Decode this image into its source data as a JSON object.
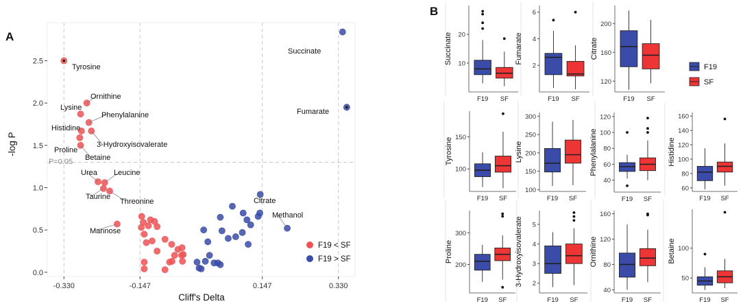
{
  "colors": {
    "F19": "#3a4ba8",
    "SF": "#ee3535",
    "SF_dot": "#ec5456",
    "grid_dash": "#c9c9c9",
    "panel_rule": "#e6e6e6"
  },
  "panelA": {
    "letter": "A",
    "threshold_label": "P=0.05",
    "legend": [
      {
        "label": "F19 < SF",
        "group": "SF"
      },
      {
        "label": "F19 > SF",
        "group": "F19"
      }
    ],
    "chart_data": {
      "type": "scatter",
      "title": "",
      "xlabel": "Cliff's Delta",
      "ylabel": "-log P",
      "xlim": [
        -0.37,
        0.37
      ],
      "ylim": [
        -0.05,
        2.95
      ],
      "xticks": [
        -0.33,
        -0.147,
        0.147,
        0.33
      ],
      "xtick_labels": [
        "-0.330",
        "-0.147",
        "0.147",
        "0.330"
      ],
      "yticks": [
        0.0,
        0.5,
        1.0,
        1.5,
        2.0,
        2.5
      ],
      "ytick_labels": [
        "0.0",
        "0.5",
        "1.0",
        "1.5",
        "2.0",
        "2.5"
      ],
      "reference_lines_x": [
        -0.33,
        -0.147,
        0.147,
        0.33
      ],
      "reference_line_y": 1.3,
      "series": [
        {
          "name": "F19 < SF",
          "group": "SF",
          "points": [
            {
              "x": -0.33,
              "y": 2.5,
              "label": "Tyrosine",
              "highlight": true
            },
            {
              "x": -0.275,
              "y": 2.0,
              "label": "Ornithine"
            },
            {
              "x": -0.29,
              "y": 1.87,
              "label": "Lysine"
            },
            {
              "x": -0.27,
              "y": 1.77,
              "label": "Phenylalanine"
            },
            {
              "x": -0.288,
              "y": 1.67,
              "label": "Histidine"
            },
            {
              "x": -0.264,
              "y": 1.67,
              "label": "3-Hydroxyisovalerate"
            },
            {
              "x": -0.292,
              "y": 1.59,
              "label": "Proline"
            },
            {
              "x": -0.29,
              "y": 1.5,
              "label": "Betaine"
            },
            {
              "x": -0.248,
              "y": 1.07,
              "label": "Urea"
            },
            {
              "x": -0.232,
              "y": 1.06,
              "label": "Leucine"
            },
            {
              "x": -0.235,
              "y": 0.99,
              "label": "Taurine"
            },
            {
              "x": -0.22,
              "y": 0.96,
              "label": "Threonine"
            },
            {
              "x": -0.202,
              "y": 0.57,
              "label": "Mannose"
            },
            {
              "x": -0.143,
              "y": 0.66
            },
            {
              "x": -0.139,
              "y": 0.59
            },
            {
              "x": -0.122,
              "y": 0.62
            },
            {
              "x": -0.112,
              "y": 0.6
            },
            {
              "x": -0.106,
              "y": 0.54
            },
            {
              "x": -0.127,
              "y": 0.55
            },
            {
              "x": -0.144,
              "y": 0.53
            },
            {
              "x": -0.137,
              "y": 0.45
            },
            {
              "x": -0.132,
              "y": 0.35
            },
            {
              "x": -0.118,
              "y": 0.37
            },
            {
              "x": -0.106,
              "y": 0.25
            },
            {
              "x": -0.137,
              "y": 0.12
            },
            {
              "x": -0.137,
              "y": 0.04
            },
            {
              "x": -0.087,
              "y": 0.39
            },
            {
              "x": -0.071,
              "y": 0.33
            },
            {
              "x": -0.064,
              "y": 0.2
            },
            {
              "x": -0.07,
              "y": 0.13
            },
            {
              "x": -0.087,
              "y": 0.03
            },
            {
              "x": -0.056,
              "y": 0.27
            },
            {
              "x": -0.046,
              "y": 0.29
            },
            {
              "x": -0.045,
              "y": 0.13
            },
            {
              "x": -0.043,
              "y": 0.21
            },
            {
              "x": -0.076,
              "y": 0.12
            },
            {
              "x": -0.047,
              "y": 0.2
            }
          ]
        },
        {
          "name": "F19 > SF",
          "group": "F19",
          "points": [
            {
              "x": 0.34,
              "y": 2.84,
              "label": "Succinate"
            },
            {
              "x": 0.35,
              "y": 1.95,
              "label": "Fumarate",
              "highlight": true
            },
            {
              "x": 0.142,
              "y": 0.92,
              "label": "Citrate"
            },
            {
              "x": 0.207,
              "y": 0.52,
              "label": "Methanol"
            },
            {
              "x": 0.075,
              "y": 0.78
            },
            {
              "x": 0.101,
              "y": 0.7
            },
            {
              "x": 0.11,
              "y": 0.62
            },
            {
              "x": 0.137,
              "y": 0.66
            },
            {
              "x": 0.141,
              "y": 0.7
            },
            {
              "x": 0.119,
              "y": 0.56
            },
            {
              "x": 0.099,
              "y": 0.47
            },
            {
              "x": 0.113,
              "y": 0.33
            },
            {
              "x": 0.083,
              "y": 0.42
            },
            {
              "x": 0.046,
              "y": 0.65
            },
            {
              "x": 0.05,
              "y": 0.49
            },
            {
              "x": 0.065,
              "y": 0.4
            },
            {
              "x": 0.006,
              "y": 0.5
            },
            {
              "x": 0.016,
              "y": 0.36
            },
            {
              "x": 0.02,
              "y": 0.2
            },
            {
              "x": 0.031,
              "y": 0.11
            },
            {
              "x": 0.04,
              "y": 0.11
            },
            {
              "x": 0.046,
              "y": 0.09
            },
            {
              "x": -0.01,
              "y": 0.12
            },
            {
              "x": -0.005,
              "y": 0.05
            },
            {
              "x": 0.0,
              "y": 0.04
            },
            {
              "x": 0.01,
              "y": 0.13
            }
          ]
        }
      ]
    }
  },
  "panelB": {
    "letter": "B",
    "legend": [
      {
        "label": "F19",
        "group": "F19"
      },
      {
        "label": "SF",
        "group": "SF"
      }
    ],
    "chart_data": {
      "type": "box",
      "groups": [
        "F19",
        "SF"
      ],
      "panels": [
        {
          "name": "Succinate",
          "ylabel": "Succinate",
          "ylim": [
            0,
            30
          ],
          "yticks": [
            10,
            20
          ],
          "boxes": [
            {
              "group": "F19",
              "min": 3,
              "q1": 6,
              "median": 8,
              "q3": 11,
              "max": 18,
              "outliers": [
                22,
                24,
                27,
                28
              ]
            },
            {
              "group": "SF",
              "min": 2,
              "q1": 4.8,
              "median": 6.5,
              "q3": 8.5,
              "max": 14,
              "outliers": [
                18.5
              ]
            }
          ]
        },
        {
          "name": "Fumarate",
          "ylabel": "Fumarate",
          "ylim": [
            0,
            6.5
          ],
          "yticks": [
            2,
            4,
            6
          ],
          "boxes": [
            {
              "group": "F19",
              "min": 0.3,
              "q1": 1.3,
              "median": 2.6,
              "q3": 2.9,
              "max": 4.6,
              "outliers": [
                5.4
              ]
            },
            {
              "group": "SF",
              "min": 0.2,
              "q1": 1.2,
              "median": 1.35,
              "q3": 2.3,
              "max": 3.5,
              "outliers": [
                6.0
              ]
            }
          ]
        },
        {
          "name": "Citrate",
          "ylabel": "Citrate",
          "ylim": [
            105,
            225
          ],
          "yticks": [
            120,
            160,
            200
          ],
          "boxes": [
            {
              "group": "F19",
              "min": 108,
              "q1": 140,
              "median": 168,
              "q3": 190,
              "max": 218,
              "outliers": []
            },
            {
              "group": "SF",
              "min": 117,
              "q1": 137,
              "median": 156,
              "q3": 172,
              "max": 205,
              "outliers": []
            }
          ]
        },
        {
          "name": "Tyrosine",
          "ylabel": "Tyrosine",
          "ylim": [
            65,
            190
          ],
          "yticks": [
            100,
            150
          ],
          "boxes": [
            {
              "group": "F19",
              "min": 72,
              "q1": 88,
              "median": 98,
              "q3": 108,
              "max": 126,
              "outliers": []
            },
            {
              "group": "SF",
              "min": 70,
              "q1": 95,
              "median": 105,
              "q3": 120,
              "max": 158,
              "outliers": [
                186
              ]
            }
          ]
        },
        {
          "name": "Lysine",
          "ylabel": "Lysine",
          "ylim": [
            95,
            310
          ],
          "yticks": [
            100,
            150,
            200,
            250,
            300
          ],
          "boxes": [
            {
              "group": "F19",
              "min": 110,
              "q1": 148,
              "median": 172,
              "q3": 212,
              "max": 285,
              "outliers": []
            },
            {
              "group": "SF",
              "min": 112,
              "q1": 172,
              "median": 195,
              "q3": 235,
              "max": 290,
              "outliers": []
            }
          ]
        },
        {
          "name": "Phenylalanine",
          "ylabel": "Phenylalanine",
          "ylim": [
            25,
            125
          ],
          "yticks": [
            40,
            60,
            80,
            100,
            120
          ],
          "boxes": [
            {
              "group": "F19",
              "min": 42,
              "q1": 51,
              "median": 57,
              "q3": 62,
              "max": 72,
              "outliers": [
                100,
                33
              ]
            },
            {
              "group": "SF",
              "min": 40,
              "q1": 52,
              "median": 60,
              "q3": 68,
              "max": 90,
              "outliers": [
                100,
                105,
                118
              ]
            }
          ]
        },
        {
          "name": "Histidine",
          "ylabel": "Histidine",
          "ylim": [
            55,
            165
          ],
          "yticks": [
            60,
            80,
            100,
            120,
            140,
            160
          ],
          "boxes": [
            {
              "group": "F19",
              "min": 58,
              "q1": 70,
              "median": 82,
              "q3": 90,
              "max": 115,
              "outliers": []
            },
            {
              "group": "SF",
              "min": 63,
              "q1": 82,
              "median": 90,
              "q3": 96,
              "max": 122,
              "outliers": [
                156
              ]
            }
          ]
        },
        {
          "name": "Proline",
          "ylabel": "Proline",
          "ylim": [
            110,
            370
          ],
          "yticks": [
            200,
            300
          ],
          "boxes": [
            {
              "group": "F19",
              "min": 145,
              "q1": 182,
              "median": 210,
              "q3": 232,
              "max": 262,
              "outliers": []
            },
            {
              "group": "SF",
              "min": 152,
              "q1": 212,
              "median": 232,
              "q3": 252,
              "max": 292,
              "outliers": [
                360,
                352,
                128
              ]
            }
          ]
        },
        {
          "name": "3-Hydroxyisovalerate",
          "ylabel": "3-Hydroxyisovalerate",
          "ylim": [
            1.5,
            5.7
          ],
          "yticks": [
            2,
            3,
            4,
            5
          ],
          "boxes": [
            {
              "group": "F19",
              "min": 1.8,
              "q1": 2.5,
              "median": 3.0,
              "q3": 3.9,
              "max": 4.6,
              "outliers": []
            },
            {
              "group": "SF",
              "min": 1.9,
              "q1": 3.0,
              "median": 3.4,
              "q3": 4.0,
              "max": 4.8,
              "outliers": [
                5.2,
                5.4,
                5.6
              ]
            }
          ]
        },
        {
          "name": "Ornithine",
          "ylabel": "Ornithine",
          "ylim": [
            35,
            165
          ],
          "yticks": [
            40,
            80,
            120,
            160
          ],
          "boxes": [
            {
              "group": "F19",
              "min": 40,
              "q1": 60,
              "median": 80,
              "q3": 98,
              "max": 143,
              "outliers": []
            },
            {
              "group": "SF",
              "min": 52,
              "q1": 78,
              "median": 90,
              "q3": 105,
              "max": 135,
              "outliers": [
                158,
                160
              ]
            }
          ]
        },
        {
          "name": "Betaine",
          "ylabel": "Betaine",
          "ylim": [
            25,
            165
          ],
          "yticks": [
            50,
            100
          ],
          "boxes": [
            {
              "group": "F19",
              "min": 30,
              "q1": 38,
              "median": 45,
              "q3": 52,
              "max": 68,
              "outliers": [
                90
              ]
            },
            {
              "group": "SF",
              "min": 33,
              "q1": 42,
              "median": 52,
              "q3": 62,
              "max": 82,
              "outliers": [
                160
              ]
            }
          ]
        }
      ]
    }
  }
}
